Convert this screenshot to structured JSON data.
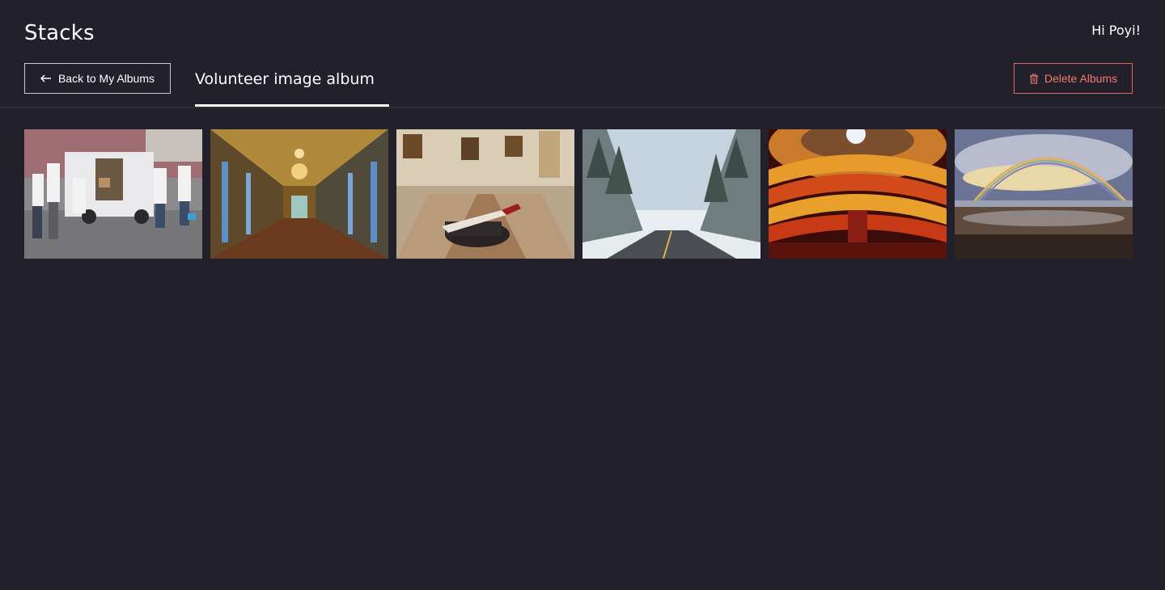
{
  "app": {
    "brand": "Stacks",
    "greeting": "Hi Poyi!"
  },
  "toolbar": {
    "back_label": "Back to My Albums",
    "album_title": "Volunteer image album",
    "delete_label": "Delete Albums"
  },
  "colors": {
    "background": "#22212b",
    "text": "#ffffff",
    "danger": "#ef7a6e",
    "divider": "#2d2c38"
  },
  "album": {
    "images": [
      {
        "name": "volunteers-van-photo",
        "subject": "volunteers unloading van"
      },
      {
        "name": "ornate-gallery-hall-photo",
        "subject": "gilded palace gallery"
      },
      {
        "name": "museum-hall-photo",
        "subject": "woman reclining in museum hall"
      },
      {
        "name": "snowy-forest-road-photo",
        "subject": "snowy forest road"
      },
      {
        "name": "opera-house-interior-photo",
        "subject": "red opera house interior"
      },
      {
        "name": "beach-rainbow-photo",
        "subject": "rainbow over beach"
      }
    ]
  }
}
